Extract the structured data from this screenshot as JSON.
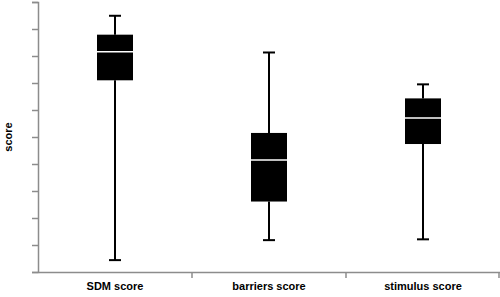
{
  "chart_data": {
    "type": "box",
    "y_label": "score",
    "categories": [
      "SDM score",
      "barriers score",
      "stimulus score"
    ],
    "boxes": [
      {
        "min": 0.44,
        "q1": 7.1,
        "median": 8.16,
        "q3": 8.79,
        "max": 9.49
      },
      {
        "min": 1.18,
        "q1": 2.61,
        "median": 4.15,
        "q3": 5.15,
        "max": 8.13
      },
      {
        "min": 1.21,
        "q1": 4.74,
        "median": 5.7,
        "q3": 6.43,
        "max": 6.95
      }
    ],
    "color": "#000000",
    "ylim": [
      0,
      10
    ],
    "yticks": [
      0,
      1,
      2,
      3,
      4,
      5,
      6,
      7,
      8,
      9,
      10
    ],
    "tick_labels": "x",
    "grid": false
  }
}
